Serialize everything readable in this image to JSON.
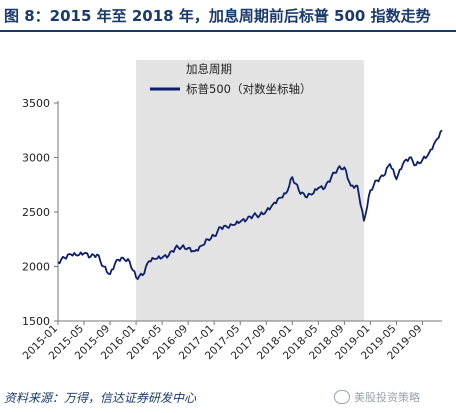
{
  "title": "图 8：2015 年至 2018 年，加息周期前后标普 500 指数走势",
  "source": "资料来源：万得，信达证券研发中心",
  "watermark": "美股投资策略",
  "colors": {
    "line": "#0d1f6b",
    "shade": "#e3e3e3",
    "title": "#1a3a6b"
  },
  "chart_data": {
    "type": "line",
    "legend": {
      "items": [
        "加息周期",
        "标普500（对数坐标轴）"
      ],
      "position": "top-center"
    },
    "yticks": [
      1500,
      2000,
      2500,
      3000,
      3500
    ],
    "ylim": [
      1500,
      3500
    ],
    "xticks": [
      "2015-01",
      "2015-05",
      "2015-09",
      "2016-01",
      "2016-05",
      "2016-09",
      "2017-01",
      "2017-05",
      "2017-09",
      "2018-01",
      "2018-05",
      "2018-09",
      "2019-01",
      "2019-05",
      "2019-09"
    ],
    "xlim": [
      "2015-01",
      "2019-12"
    ],
    "shaded_range": {
      "name": "加息周期",
      "start": "2016-01",
      "end": "2018-12"
    },
    "series": [
      {
        "name": "标普500（对数坐标轴）",
        "x": [
          "2015-01",
          "2015-02",
          "2015-03",
          "2015-04",
          "2015-05",
          "2015-06",
          "2015-07",
          "2015-08",
          "2015-09",
          "2015-10",
          "2015-11",
          "2015-12",
          "2016-01",
          "2016-02",
          "2016-03",
          "2016-04",
          "2016-05",
          "2016-06",
          "2016-07",
          "2016-08",
          "2016-09",
          "2016-10",
          "2016-11",
          "2016-12",
          "2017-01",
          "2017-02",
          "2017-03",
          "2017-04",
          "2017-05",
          "2017-06",
          "2017-07",
          "2017-08",
          "2017-09",
          "2017-10",
          "2017-11",
          "2017-12",
          "2018-01",
          "2018-02",
          "2018-03",
          "2018-04",
          "2018-05",
          "2018-06",
          "2018-07",
          "2018-08",
          "2018-09",
          "2018-10",
          "2018-11",
          "2018-12",
          "2019-01",
          "2019-02",
          "2019-03",
          "2019-04",
          "2019-05",
          "2019-06",
          "2019-07",
          "2019-08",
          "2019-09",
          "2019-10",
          "2019-11",
          "2019-12"
        ],
        "values": [
          2040,
          2080,
          2110,
          2100,
          2120,
          2090,
          2110,
          2000,
          1930,
          2060,
          2080,
          2045,
          1900,
          1920,
          2050,
          2070,
          2080,
          2100,
          2170,
          2180,
          2170,
          2140,
          2190,
          2250,
          2280,
          2360,
          2360,
          2380,
          2410,
          2430,
          2470,
          2470,
          2510,
          2570,
          2630,
          2670,
          2820,
          2700,
          2640,
          2660,
          2720,
          2720,
          2820,
          2900,
          2910,
          2740,
          2740,
          2420,
          2700,
          2790,
          2830,
          2940,
          2800,
          2940,
          3000,
          2930,
          2980,
          3040,
          3150,
          3250
        ]
      }
    ]
  }
}
